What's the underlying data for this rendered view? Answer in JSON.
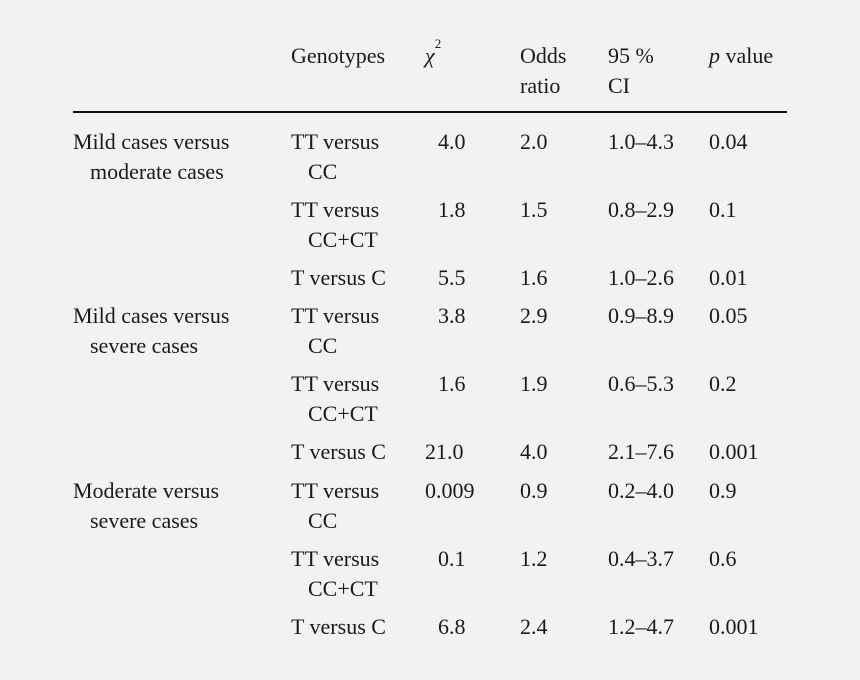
{
  "header": {
    "genotypes": "Genotypes",
    "chi": "χ",
    "chi_sup": "2",
    "odds": [
      "Odds",
      "ratio"
    ],
    "ci": [
      "95 %",
      "CI"
    ],
    "p_italic": "p",
    "p_rest": " value"
  },
  "groups": [
    {
      "label": [
        "Mild cases versus",
        "moderate cases"
      ],
      "rows": [
        {
          "geno": [
            "TT versus",
            "CC"
          ],
          "chi2": "4.0",
          "or": "2.0",
          "ci": "1.0–4.3",
          "p": "0.04"
        },
        {
          "geno": [
            "TT versus",
            "CC+CT"
          ],
          "chi2": "1.8",
          "or": "1.5",
          "ci": "0.8–2.9",
          "p": "0.1"
        },
        {
          "geno": [
            "T versus C"
          ],
          "chi2": "5.5",
          "or": "1.6",
          "ci": "1.0–2.6",
          "p": "0.01"
        }
      ]
    },
    {
      "label": [
        "Mild cases versus",
        "severe cases"
      ],
      "rows": [
        {
          "geno": [
            "TT versus",
            "CC"
          ],
          "chi2": "3.8",
          "or": "2.9",
          "ci": "0.9–8.9",
          "p": "0.05"
        },
        {
          "geno": [
            "TT versus",
            "CC+CT"
          ],
          "chi2": "1.6",
          "or": "1.9",
          "ci": "0.6–5.3",
          "p": "0.2"
        },
        {
          "geno": [
            "T versus C"
          ],
          "chi2": "21.0",
          "or": "4.0",
          "ci": "2.1–7.6",
          "p": "0.001"
        }
      ]
    },
    {
      "label": [
        "Moderate versus",
        "severe cases"
      ],
      "rows": [
        {
          "geno": [
            "TT versus",
            "CC"
          ],
          "chi2": "0.009",
          "or": "0.9",
          "ci": "0.2–4.0",
          "p": "0.9"
        },
        {
          "geno": [
            "TT versus",
            "CC+CT"
          ],
          "chi2": "0.1",
          "or": "1.2",
          "ci": "0.4–3.7",
          "p": "0.6"
        },
        {
          "geno": [
            "T versus C"
          ],
          "chi2": "6.8",
          "or": "2.4",
          "ci": "1.2–4.7",
          "p": "0.001"
        }
      ]
    }
  ]
}
